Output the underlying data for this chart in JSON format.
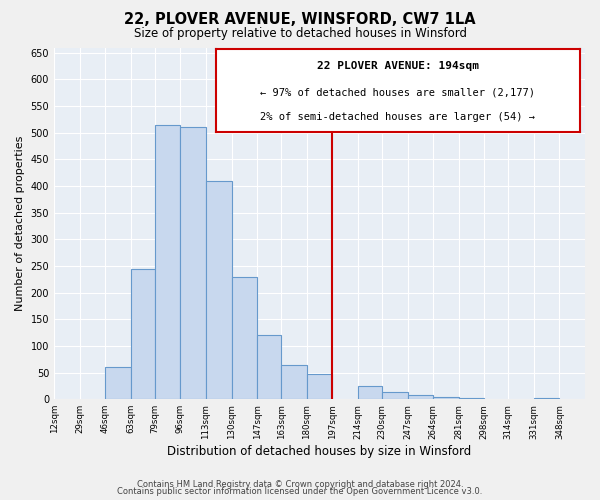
{
  "title": "22, PLOVER AVENUE, WINSFORD, CW7 1LA",
  "subtitle": "Size of property relative to detached houses in Winsford",
  "xlabel": "Distribution of detached houses by size in Winsford",
  "ylabel": "Number of detached properties",
  "bar_edges": [
    12,
    29,
    46,
    63,
    79,
    96,
    113,
    130,
    147,
    163,
    180,
    197,
    214,
    230,
    247,
    264,
    281,
    298,
    314,
    331,
    348
  ],
  "bar_heights": [
    0,
    0,
    60,
    245,
    515,
    510,
    410,
    230,
    120,
    65,
    47,
    0,
    25,
    13,
    8,
    5,
    3,
    0,
    0,
    3
  ],
  "tick_labels": [
    "12sqm",
    "29sqm",
    "46sqm",
    "63sqm",
    "79sqm",
    "96sqm",
    "113sqm",
    "130sqm",
    "147sqm",
    "163sqm",
    "180sqm",
    "197sqm",
    "214sqm",
    "230sqm",
    "247sqm",
    "264sqm",
    "281sqm",
    "298sqm",
    "314sqm",
    "331sqm",
    "348sqm"
  ],
  "bar_color": "#c8d8ee",
  "bar_edge_color": "#6699cc",
  "property_line_x": 197,
  "property_line_color": "#cc0000",
  "annotation_title": "22 PLOVER AVENUE: 194sqm",
  "annotation_line1": "← 97% of detached houses are smaller (2,177)",
  "annotation_line2": "2% of semi-detached houses are larger (54) →",
  "annotation_box_color": "#ffffff",
  "annotation_box_edge": "#cc0000",
  "ylim": [
    0,
    660
  ],
  "yticks": [
    0,
    50,
    100,
    150,
    200,
    250,
    300,
    350,
    400,
    450,
    500,
    550,
    600,
    650
  ],
  "footer_line1": "Contains HM Land Registry data © Crown copyright and database right 2024.",
  "footer_line2": "Contains public sector information licensed under the Open Government Licence v3.0.",
  "background_color": "#f0f0f0",
  "grid_color": "#ffffff",
  "plot_bg_color": "#e8eef5"
}
